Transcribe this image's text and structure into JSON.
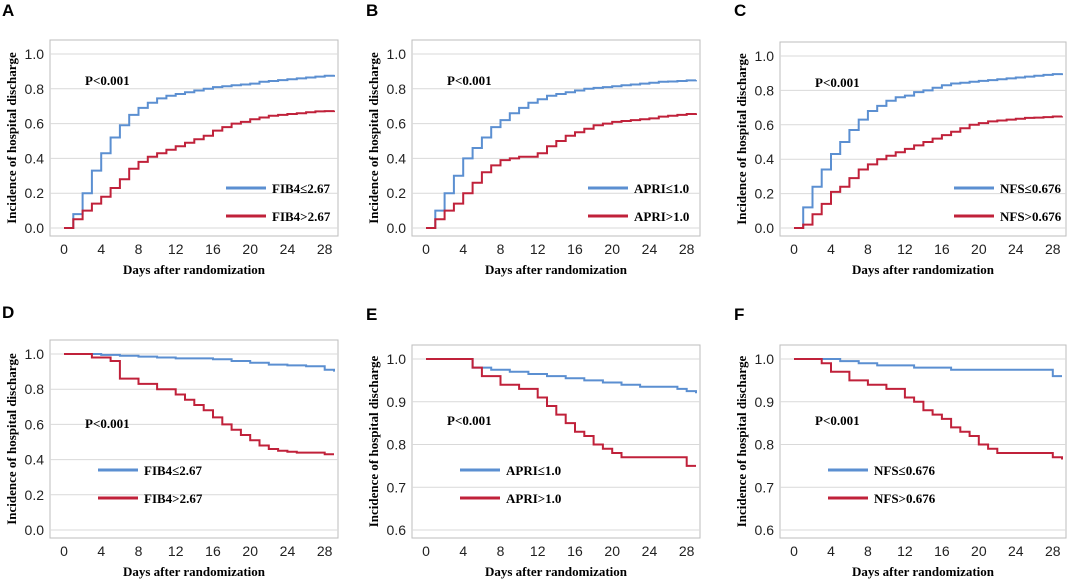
{
  "colors": {
    "blue": "#5b8fd1",
    "red": "#c0213a"
  },
  "chart_data": [
    {
      "id": "A",
      "type": "line",
      "letter": "A",
      "xlabel": "Days after randomization",
      "ylabel": "Incidence of hospital discharge",
      "pvalue": "P<0.001",
      "legend_placement": "lower-right",
      "xlim": [
        0,
        29
      ],
      "ylim": [
        0,
        1.0
      ],
      "xticks": [
        0,
        4,
        8,
        12,
        16,
        20,
        24,
        28
      ],
      "yticks": [
        0.0,
        0.2,
        0.4,
        0.6,
        0.8,
        1.0
      ],
      "ytick_labels": [
        "0.0",
        "0.2",
        "0.4",
        "0.6",
        "0.8",
        "1.0"
      ],
      "series": [
        {
          "name": "FIB4≤2.67",
          "color": "#5b8fd1",
          "x": [
            0,
            1,
            2,
            3,
            4,
            5,
            6,
            7,
            8,
            9,
            10,
            11,
            12,
            13,
            14,
            15,
            16,
            17,
            18,
            19,
            20,
            21,
            22,
            23,
            24,
            25,
            26,
            27,
            28,
            29
          ],
          "y": [
            0,
            0.08,
            0.2,
            0.33,
            0.43,
            0.52,
            0.59,
            0.65,
            0.69,
            0.72,
            0.745,
            0.76,
            0.77,
            0.78,
            0.79,
            0.8,
            0.81,
            0.815,
            0.82,
            0.825,
            0.83,
            0.84,
            0.845,
            0.85,
            0.855,
            0.86,
            0.865,
            0.87,
            0.875,
            0.88
          ]
        },
        {
          "name": "FIB4>2.67",
          "color": "#c0213a",
          "x": [
            0,
            1,
            2,
            3,
            4,
            5,
            6,
            7,
            8,
            9,
            10,
            11,
            12,
            13,
            14,
            15,
            16,
            17,
            18,
            19,
            20,
            21,
            22,
            23,
            24,
            25,
            26,
            27,
            28,
            29
          ],
          "y": [
            0,
            0.05,
            0.1,
            0.14,
            0.18,
            0.23,
            0.28,
            0.34,
            0.38,
            0.41,
            0.43,
            0.45,
            0.47,
            0.49,
            0.51,
            0.53,
            0.56,
            0.58,
            0.6,
            0.61,
            0.625,
            0.635,
            0.645,
            0.65,
            0.655,
            0.66,
            0.665,
            0.67,
            0.672,
            0.675
          ]
        }
      ]
    },
    {
      "id": "B",
      "type": "line",
      "letter": "B",
      "xlabel": "Days after randomization",
      "ylabel": "Incidence of hospital discharge",
      "pvalue": "P<0.001",
      "legend_placement": "lower-right",
      "xlim": [
        0,
        29
      ],
      "ylim": [
        0,
        1.0
      ],
      "xticks": [
        0,
        4,
        8,
        12,
        16,
        20,
        24,
        28
      ],
      "yticks": [
        0.0,
        0.2,
        0.4,
        0.6,
        0.8,
        1.0
      ],
      "ytick_labels": [
        "0.0",
        "0.2",
        "0.4",
        "0.6",
        "0.8",
        "1.0"
      ],
      "series": [
        {
          "name": "APRI≤1.0",
          "color": "#5b8fd1",
          "x": [
            0,
            1,
            2,
            3,
            4,
            5,
            6,
            7,
            8,
            9,
            10,
            11,
            12,
            13,
            14,
            15,
            16,
            17,
            18,
            19,
            20,
            21,
            22,
            23,
            24,
            25,
            26,
            27,
            28,
            29
          ],
          "y": [
            0,
            0.1,
            0.2,
            0.3,
            0.4,
            0.46,
            0.52,
            0.58,
            0.62,
            0.66,
            0.69,
            0.72,
            0.74,
            0.76,
            0.77,
            0.78,
            0.79,
            0.8,
            0.805,
            0.81,
            0.815,
            0.82,
            0.825,
            0.83,
            0.835,
            0.84,
            0.842,
            0.845,
            0.848,
            0.85
          ]
        },
        {
          "name": "APRI>1.0",
          "color": "#c0213a",
          "x": [
            0,
            1,
            2,
            3,
            4,
            5,
            6,
            7,
            8,
            9,
            10,
            11,
            12,
            13,
            14,
            15,
            16,
            17,
            18,
            19,
            20,
            21,
            22,
            23,
            24,
            25,
            26,
            27,
            28,
            29
          ],
          "y": [
            0,
            0.05,
            0.1,
            0.14,
            0.2,
            0.26,
            0.32,
            0.36,
            0.39,
            0.4,
            0.41,
            0.41,
            0.43,
            0.47,
            0.5,
            0.53,
            0.55,
            0.57,
            0.59,
            0.6,
            0.61,
            0.615,
            0.62,
            0.625,
            0.63,
            0.64,
            0.645,
            0.65,
            0.655,
            0.66
          ]
        }
      ]
    },
    {
      "id": "C",
      "type": "line",
      "letter": "C",
      "xlabel": "Days after randomization",
      "ylabel": "Incidence of hospital discharge",
      "pvalue": "P<0.001",
      "legend_placement": "lower-right",
      "xlim": [
        0,
        29
      ],
      "ylim": [
        0,
        1.0
      ],
      "xticks": [
        0,
        4,
        8,
        12,
        16,
        20,
        24,
        28
      ],
      "yticks": [
        0.0,
        0.2,
        0.4,
        0.6,
        0.8,
        1.0
      ],
      "ytick_labels": [
        "0.0",
        "0.2",
        "0.4",
        "0.6",
        "0.8",
        "1.0"
      ],
      "series": [
        {
          "name": "NFS≤0.676",
          "color": "#5b8fd1",
          "x": [
            0,
            1,
            2,
            3,
            4,
            5,
            6,
            7,
            8,
            9,
            10,
            11,
            12,
            13,
            14,
            15,
            16,
            17,
            18,
            19,
            20,
            21,
            22,
            23,
            24,
            25,
            26,
            27,
            28,
            29
          ],
          "y": [
            0,
            0.12,
            0.24,
            0.34,
            0.43,
            0.5,
            0.57,
            0.63,
            0.68,
            0.71,
            0.74,
            0.76,
            0.77,
            0.79,
            0.8,
            0.815,
            0.83,
            0.84,
            0.845,
            0.85,
            0.855,
            0.86,
            0.865,
            0.87,
            0.875,
            0.88,
            0.885,
            0.89,
            0.895,
            0.9
          ]
        },
        {
          "name": "NFS>0.676",
          "color": "#c0213a",
          "x": [
            0,
            1,
            2,
            3,
            4,
            5,
            6,
            7,
            8,
            9,
            10,
            11,
            12,
            13,
            14,
            15,
            16,
            17,
            18,
            19,
            20,
            21,
            22,
            23,
            24,
            25,
            26,
            27,
            28,
            29
          ],
          "y": [
            0,
            0.02,
            0.08,
            0.14,
            0.21,
            0.24,
            0.29,
            0.34,
            0.37,
            0.4,
            0.42,
            0.44,
            0.46,
            0.48,
            0.5,
            0.52,
            0.54,
            0.56,
            0.58,
            0.6,
            0.61,
            0.62,
            0.625,
            0.63,
            0.635,
            0.64,
            0.642,
            0.645,
            0.648,
            0.65
          ]
        }
      ]
    },
    {
      "id": "D",
      "type": "line",
      "letter": "D",
      "xlabel": "Days after randomization",
      "ylabel": "Incidence of hospital discharge",
      "pvalue": "P<0.001",
      "legend_placement": "lower-left",
      "xlim": [
        0,
        29
      ],
      "ylim": [
        0,
        1.0
      ],
      "xticks": [
        0,
        4,
        8,
        12,
        16,
        20,
        24,
        28
      ],
      "yticks": [
        0.0,
        0.2,
        0.4,
        0.6,
        0.8,
        1.0
      ],
      "ytick_labels": [
        "0.0",
        "0.2",
        "0.4",
        "0.6",
        "0.8",
        "1.0"
      ],
      "series": [
        {
          "name": "FIB4≤2.67",
          "color": "#5b8fd1",
          "x": [
            0,
            2,
            4,
            6,
            8,
            10,
            12,
            14,
            16,
            18,
            20,
            22,
            24,
            26,
            28,
            29
          ],
          "y": [
            1.0,
            1.0,
            0.995,
            0.99,
            0.985,
            0.98,
            0.975,
            0.975,
            0.97,
            0.96,
            0.95,
            0.94,
            0.935,
            0.93,
            0.91,
            0.9
          ]
        },
        {
          "name": "FIB4>2.67",
          "color": "#c0213a",
          "x": [
            0,
            3,
            5,
            6,
            8,
            10,
            12,
            13,
            14,
            15,
            16,
            17,
            18,
            19,
            20,
            21,
            22,
            23,
            24,
            25,
            26,
            27,
            28,
            29
          ],
          "y": [
            1.0,
            0.98,
            0.96,
            0.86,
            0.83,
            0.8,
            0.77,
            0.74,
            0.71,
            0.68,
            0.64,
            0.6,
            0.57,
            0.54,
            0.51,
            0.48,
            0.46,
            0.45,
            0.445,
            0.44,
            0.44,
            0.44,
            0.43,
            0.43
          ]
        }
      ]
    },
    {
      "id": "E",
      "type": "line",
      "letter": "E",
      "xlabel": "Days after randomization",
      "ylabel": "Incidence of hospital discharge",
      "pvalue": "P<0.001",
      "legend_placement": "lower-left",
      "xlim": [
        0,
        29
      ],
      "ylim": [
        0.6,
        1.0
      ],
      "xticks": [
        0,
        4,
        8,
        12,
        16,
        20,
        24,
        28
      ],
      "yticks": [
        0.6,
        0.7,
        0.8,
        0.9,
        1.0
      ],
      "ytick_labels": [
        "0.6",
        "0.7",
        "0.8",
        "0.9",
        "1.0"
      ],
      "series": [
        {
          "name": "APRI≤1.0",
          "color": "#5b8fd1",
          "x": [
            0,
            3,
            5,
            7,
            9,
            11,
            13,
            15,
            17,
            19,
            21,
            23,
            25,
            27,
            28,
            29
          ],
          "y": [
            1.0,
            1.0,
            0.98,
            0.975,
            0.97,
            0.965,
            0.96,
            0.955,
            0.95,
            0.945,
            0.94,
            0.935,
            0.935,
            0.93,
            0.925,
            0.92
          ]
        },
        {
          "name": "APRI>1.0",
          "color": "#c0213a",
          "x": [
            0,
            4,
            5,
            6,
            8,
            10,
            12,
            13,
            14,
            15,
            16,
            17,
            18,
            19,
            20,
            21,
            22,
            24,
            26,
            28,
            29
          ],
          "y": [
            1.0,
            1.0,
            0.98,
            0.96,
            0.94,
            0.93,
            0.91,
            0.89,
            0.87,
            0.85,
            0.83,
            0.82,
            0.8,
            0.79,
            0.78,
            0.77,
            0.77,
            0.77,
            0.77,
            0.75,
            0.75
          ]
        }
      ]
    },
    {
      "id": "F",
      "type": "line",
      "letter": "F",
      "xlabel": "Days after randomization",
      "ylabel": "Incidence of hospital discharge",
      "pvalue": "P<0.001",
      "legend_placement": "lower-left",
      "xlim": [
        0,
        29
      ],
      "ylim": [
        0.6,
        1.0
      ],
      "xticks": [
        0,
        4,
        8,
        12,
        16,
        20,
        24,
        28
      ],
      "yticks": [
        0.6,
        0.7,
        0.8,
        0.9,
        1.0
      ],
      "ytick_labels": [
        "0.6",
        "0.7",
        "0.8",
        "0.9",
        "1.0"
      ],
      "series": [
        {
          "name": "NFS≤0.676",
          "color": "#5b8fd1",
          "x": [
            0,
            3,
            5,
            7,
            9,
            11,
            13,
            15,
            17,
            19,
            21,
            23,
            25,
            27,
            28,
            29
          ],
          "y": [
            1.0,
            1.0,
            0.995,
            0.99,
            0.985,
            0.985,
            0.98,
            0.98,
            0.975,
            0.975,
            0.975,
            0.975,
            0.975,
            0.975,
            0.96,
            0.96
          ]
        },
        {
          "name": "NFS>0.676",
          "color": "#c0213a",
          "x": [
            0,
            3,
            4,
            6,
            8,
            10,
            12,
            13,
            14,
            15,
            16,
            17,
            18,
            19,
            20,
            21,
            22,
            24,
            26,
            28,
            29
          ],
          "y": [
            1.0,
            0.99,
            0.97,
            0.95,
            0.94,
            0.93,
            0.91,
            0.9,
            0.88,
            0.87,
            0.86,
            0.84,
            0.83,
            0.82,
            0.8,
            0.79,
            0.78,
            0.78,
            0.78,
            0.77,
            0.765
          ]
        }
      ]
    }
  ]
}
